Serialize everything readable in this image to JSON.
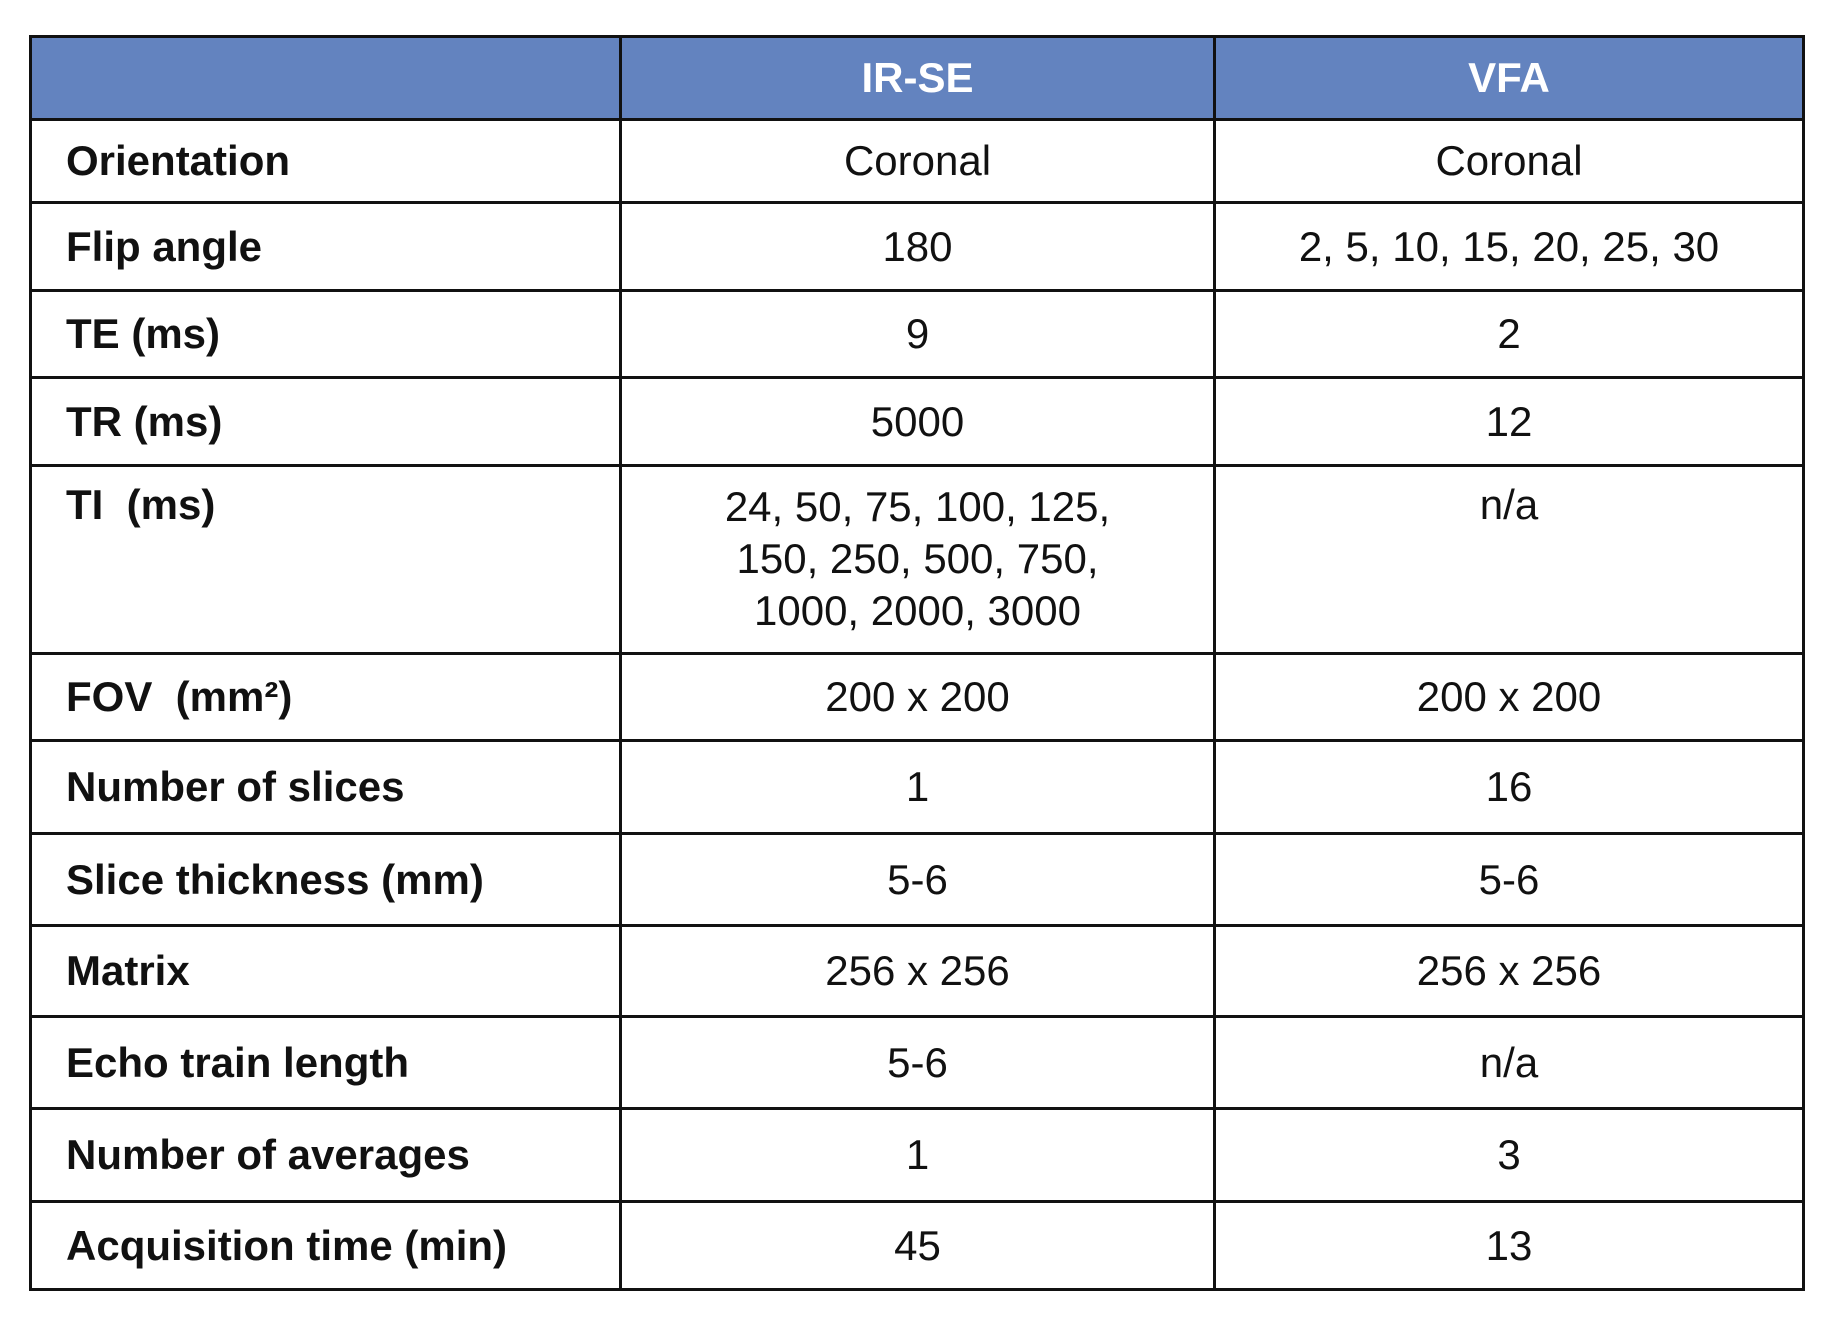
{
  "table": {
    "header": [
      "",
      "IR-SE",
      "VFA"
    ],
    "rows": [
      {
        "label": "Orientation",
        "cells": [
          "Coronal",
          "Coronal"
        ]
      },
      {
        "label": "Flip angle",
        "cells": [
          "180",
          "2, 5, 10, 15, 20, 25, 30"
        ]
      },
      {
        "label": "TE (ms)",
        "cells": [
          "9",
          "2"
        ]
      },
      {
        "label": "TR (ms)",
        "cells": [
          "5000",
          "12"
        ]
      },
      {
        "label": "TI  (ms)",
        "cells": [
          [
            "24, 50, 75, 100, 125,",
            "150, 250, 500, 750,",
            "1000, 2000, 3000"
          ],
          "n/a"
        ]
      },
      {
        "label": "FOV  (mm²)",
        "cells": [
          "200 x 200",
          "200 x 200"
        ]
      },
      {
        "label": "Number of slices",
        "cells": [
          "1",
          "16"
        ]
      },
      {
        "label": "Slice thickness (mm)",
        "cells": [
          "5-6",
          "5-6"
        ]
      },
      {
        "label": "Matrix",
        "cells": [
          "256 x 256",
          "256 x 256"
        ]
      },
      {
        "label": "Echo train length",
        "cells": [
          "5-6",
          "n/a"
        ]
      },
      {
        "label": "Number of averages",
        "cells": [
          "1",
          "3"
        ]
      },
      {
        "label": "Acquisition time (min)",
        "cells": [
          "45",
          "13"
        ]
      }
    ]
  }
}
